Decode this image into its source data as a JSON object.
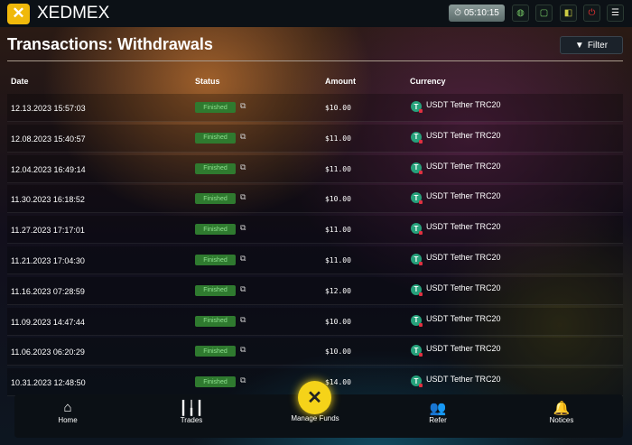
{
  "header": {
    "brand": "XEDMEX",
    "clock": "05:10:15"
  },
  "page": {
    "title": "Transactions: Withdrawals",
    "filter_label": "Filter"
  },
  "table": {
    "columns": [
      "Date",
      "Status",
      "Amount",
      "Currency"
    ],
    "rows": [
      {
        "date": "12.13.2023 15:57:03",
        "status": "Finished",
        "amount": "$10.00",
        "currency": "USDT Tether TRC20"
      },
      {
        "date": "12.08.2023 15:40:57",
        "status": "Finished",
        "amount": "$11.00",
        "currency": "USDT Tether TRC20"
      },
      {
        "date": "12.04.2023 16:49:14",
        "status": "Finished",
        "amount": "$11.00",
        "currency": "USDT Tether TRC20"
      },
      {
        "date": "11.30.2023 16:18:52",
        "status": "Finished",
        "amount": "$10.00",
        "currency": "USDT Tether TRC20"
      },
      {
        "date": "11.27.2023 17:17:01",
        "status": "Finished",
        "amount": "$11.00",
        "currency": "USDT Tether TRC20"
      },
      {
        "date": "11.21.2023 17:04:30",
        "status": "Finished",
        "amount": "$11.00",
        "currency": "USDT Tether TRC20"
      },
      {
        "date": "11.16.2023 07:28:59",
        "status": "Finished",
        "amount": "$12.00",
        "currency": "USDT Tether TRC20"
      },
      {
        "date": "11.09.2023 14:47:44",
        "status": "Finished",
        "amount": "$10.00",
        "currency": "USDT Tether TRC20"
      },
      {
        "date": "11.06.2023 06:20:29",
        "status": "Finished",
        "amount": "$10.00",
        "currency": "USDT Tether TRC20"
      },
      {
        "date": "10.31.2023 12:48:50",
        "status": "Finished",
        "amount": "$14.00",
        "currency": "USDT Tether TRC20"
      }
    ]
  },
  "nav": {
    "home": "Home",
    "trades": "Trades",
    "manage": "Manage Funds",
    "refer": "Refer",
    "notices": "Notices"
  },
  "colors": {
    "accent": "#f5d319",
    "status": "#2f7a2f",
    "tether": "#26a17b"
  }
}
